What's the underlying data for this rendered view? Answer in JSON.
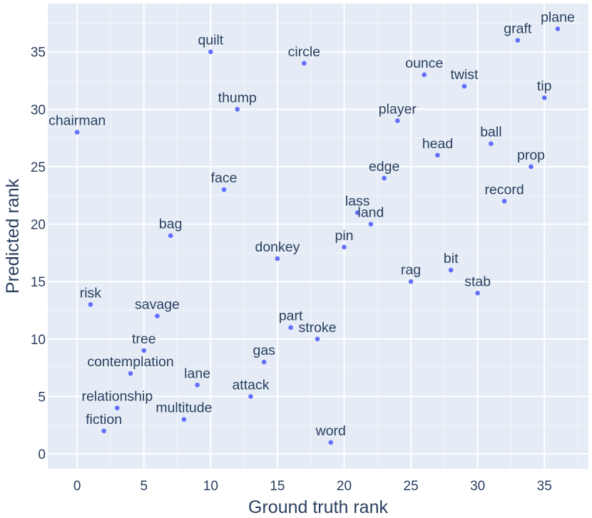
{
  "chart_data": {
    "type": "scatter",
    "title": "",
    "xlabel": "Ground truth rank",
    "ylabel": "Predicted rank",
    "xlim": [
      -2.2,
      38.3
    ],
    "ylim": [
      -1.3,
      39.2
    ],
    "x_ticks": [
      0,
      5,
      10,
      15,
      20,
      25,
      30,
      35
    ],
    "y_ticks": [
      0,
      5,
      10,
      15,
      20,
      25,
      30,
      35
    ],
    "grid": true,
    "colors": {
      "plot_bg": "#e5ecf6",
      "grid": "#ffffff",
      "marker": "#636efa",
      "text": "#2a3f5f"
    },
    "points": [
      {
        "label": "chairman",
        "x": 0,
        "y": 28
      },
      {
        "label": "risk",
        "x": 1,
        "y": 13
      },
      {
        "label": "fiction",
        "x": 2,
        "y": 2
      },
      {
        "label": "relationship",
        "x": 3,
        "y": 4
      },
      {
        "label": "contemplation",
        "x": 4,
        "y": 7
      },
      {
        "label": "tree",
        "x": 5,
        "y": 9
      },
      {
        "label": "savage",
        "x": 6,
        "y": 12
      },
      {
        "label": "bag",
        "x": 7,
        "y": 19
      },
      {
        "label": "multitude",
        "x": 8,
        "y": 3
      },
      {
        "label": "lane",
        "x": 9,
        "y": 6
      },
      {
        "label": "quilt",
        "x": 10,
        "y": 35
      },
      {
        "label": "face",
        "x": 11,
        "y": 23
      },
      {
        "label": "thump",
        "x": 12,
        "y": 30
      },
      {
        "label": "attack",
        "x": 13,
        "y": 5
      },
      {
        "label": "gas",
        "x": 14,
        "y": 8
      },
      {
        "label": "donkey",
        "x": 15,
        "y": 17
      },
      {
        "label": "part",
        "x": 16,
        "y": 11
      },
      {
        "label": "circle",
        "x": 17,
        "y": 34
      },
      {
        "label": "stroke",
        "x": 18,
        "y": 10
      },
      {
        "label": "word",
        "x": 19,
        "y": 1
      },
      {
        "label": "pin",
        "x": 20,
        "y": 18
      },
      {
        "label": "lass",
        "x": 21,
        "y": 21
      },
      {
        "label": "land",
        "x": 22,
        "y": 20
      },
      {
        "label": "edge",
        "x": 23,
        "y": 24
      },
      {
        "label": "player",
        "x": 24,
        "y": 29
      },
      {
        "label": "rag",
        "x": 25,
        "y": 15
      },
      {
        "label": "ounce",
        "x": 26,
        "y": 33
      },
      {
        "label": "head",
        "x": 27,
        "y": 26
      },
      {
        "label": "bit",
        "x": 28,
        "y": 16
      },
      {
        "label": "twist",
        "x": 29,
        "y": 32
      },
      {
        "label": "stab",
        "x": 30,
        "y": 14
      },
      {
        "label": "ball",
        "x": 31,
        "y": 27
      },
      {
        "label": "record",
        "x": 32,
        "y": 22
      },
      {
        "label": "graft",
        "x": 33,
        "y": 36
      },
      {
        "label": "prop",
        "x": 34,
        "y": 25
      },
      {
        "label": "tip",
        "x": 35,
        "y": 31
      },
      {
        "label": "plane",
        "x": 36,
        "y": 37
      }
    ]
  }
}
